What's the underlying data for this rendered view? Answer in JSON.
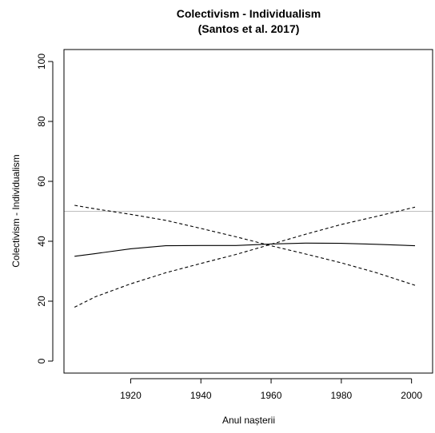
{
  "chart_data": {
    "type": "line",
    "title": "Colectivism - Individualism",
    "subtitle": "(Santos et al. 2017)",
    "xlabel": "Anul nașterii",
    "ylabel": "Colectivism - Individualism",
    "xlim": [
      1901,
      2006
    ],
    "ylim": [
      -4,
      104
    ],
    "xticks": [
      1920,
      1940,
      1960,
      1980,
      2000
    ],
    "yticks": [
      0,
      20,
      40,
      60,
      80,
      100
    ],
    "reference_line": {
      "y": 50,
      "color": "#bebebe"
    },
    "grid": false,
    "legend": "none",
    "series": [
      {
        "style": "solid",
        "x": [
          1904,
          1910,
          1920,
          1930,
          1940,
          1950,
          1960,
          1970,
          1980,
          1990,
          2001
        ],
        "y": [
          35.0,
          35.9,
          37.5,
          38.5,
          38.6,
          38.6,
          39.1,
          39.4,
          39.3,
          39.0,
          38.5
        ]
      },
      {
        "style": "dashed",
        "x": [
          1904,
          1910,
          1920,
          1930,
          1940,
          1950,
          1960,
          1970,
          1980,
          1990,
          2001
        ],
        "y": [
          52.0,
          50.8,
          49.0,
          47.0,
          44.3,
          41.5,
          38.5,
          35.7,
          32.8,
          29.5,
          25.3
        ]
      },
      {
        "style": "dashed",
        "x": [
          1904,
          1910,
          1920,
          1930,
          1940,
          1950,
          1960,
          1970,
          1980,
          1990,
          2001
        ],
        "y": [
          18.0,
          21.5,
          25.8,
          29.5,
          32.6,
          35.6,
          39.0,
          42.4,
          45.6,
          48.3,
          51.4
        ]
      }
    ]
  }
}
